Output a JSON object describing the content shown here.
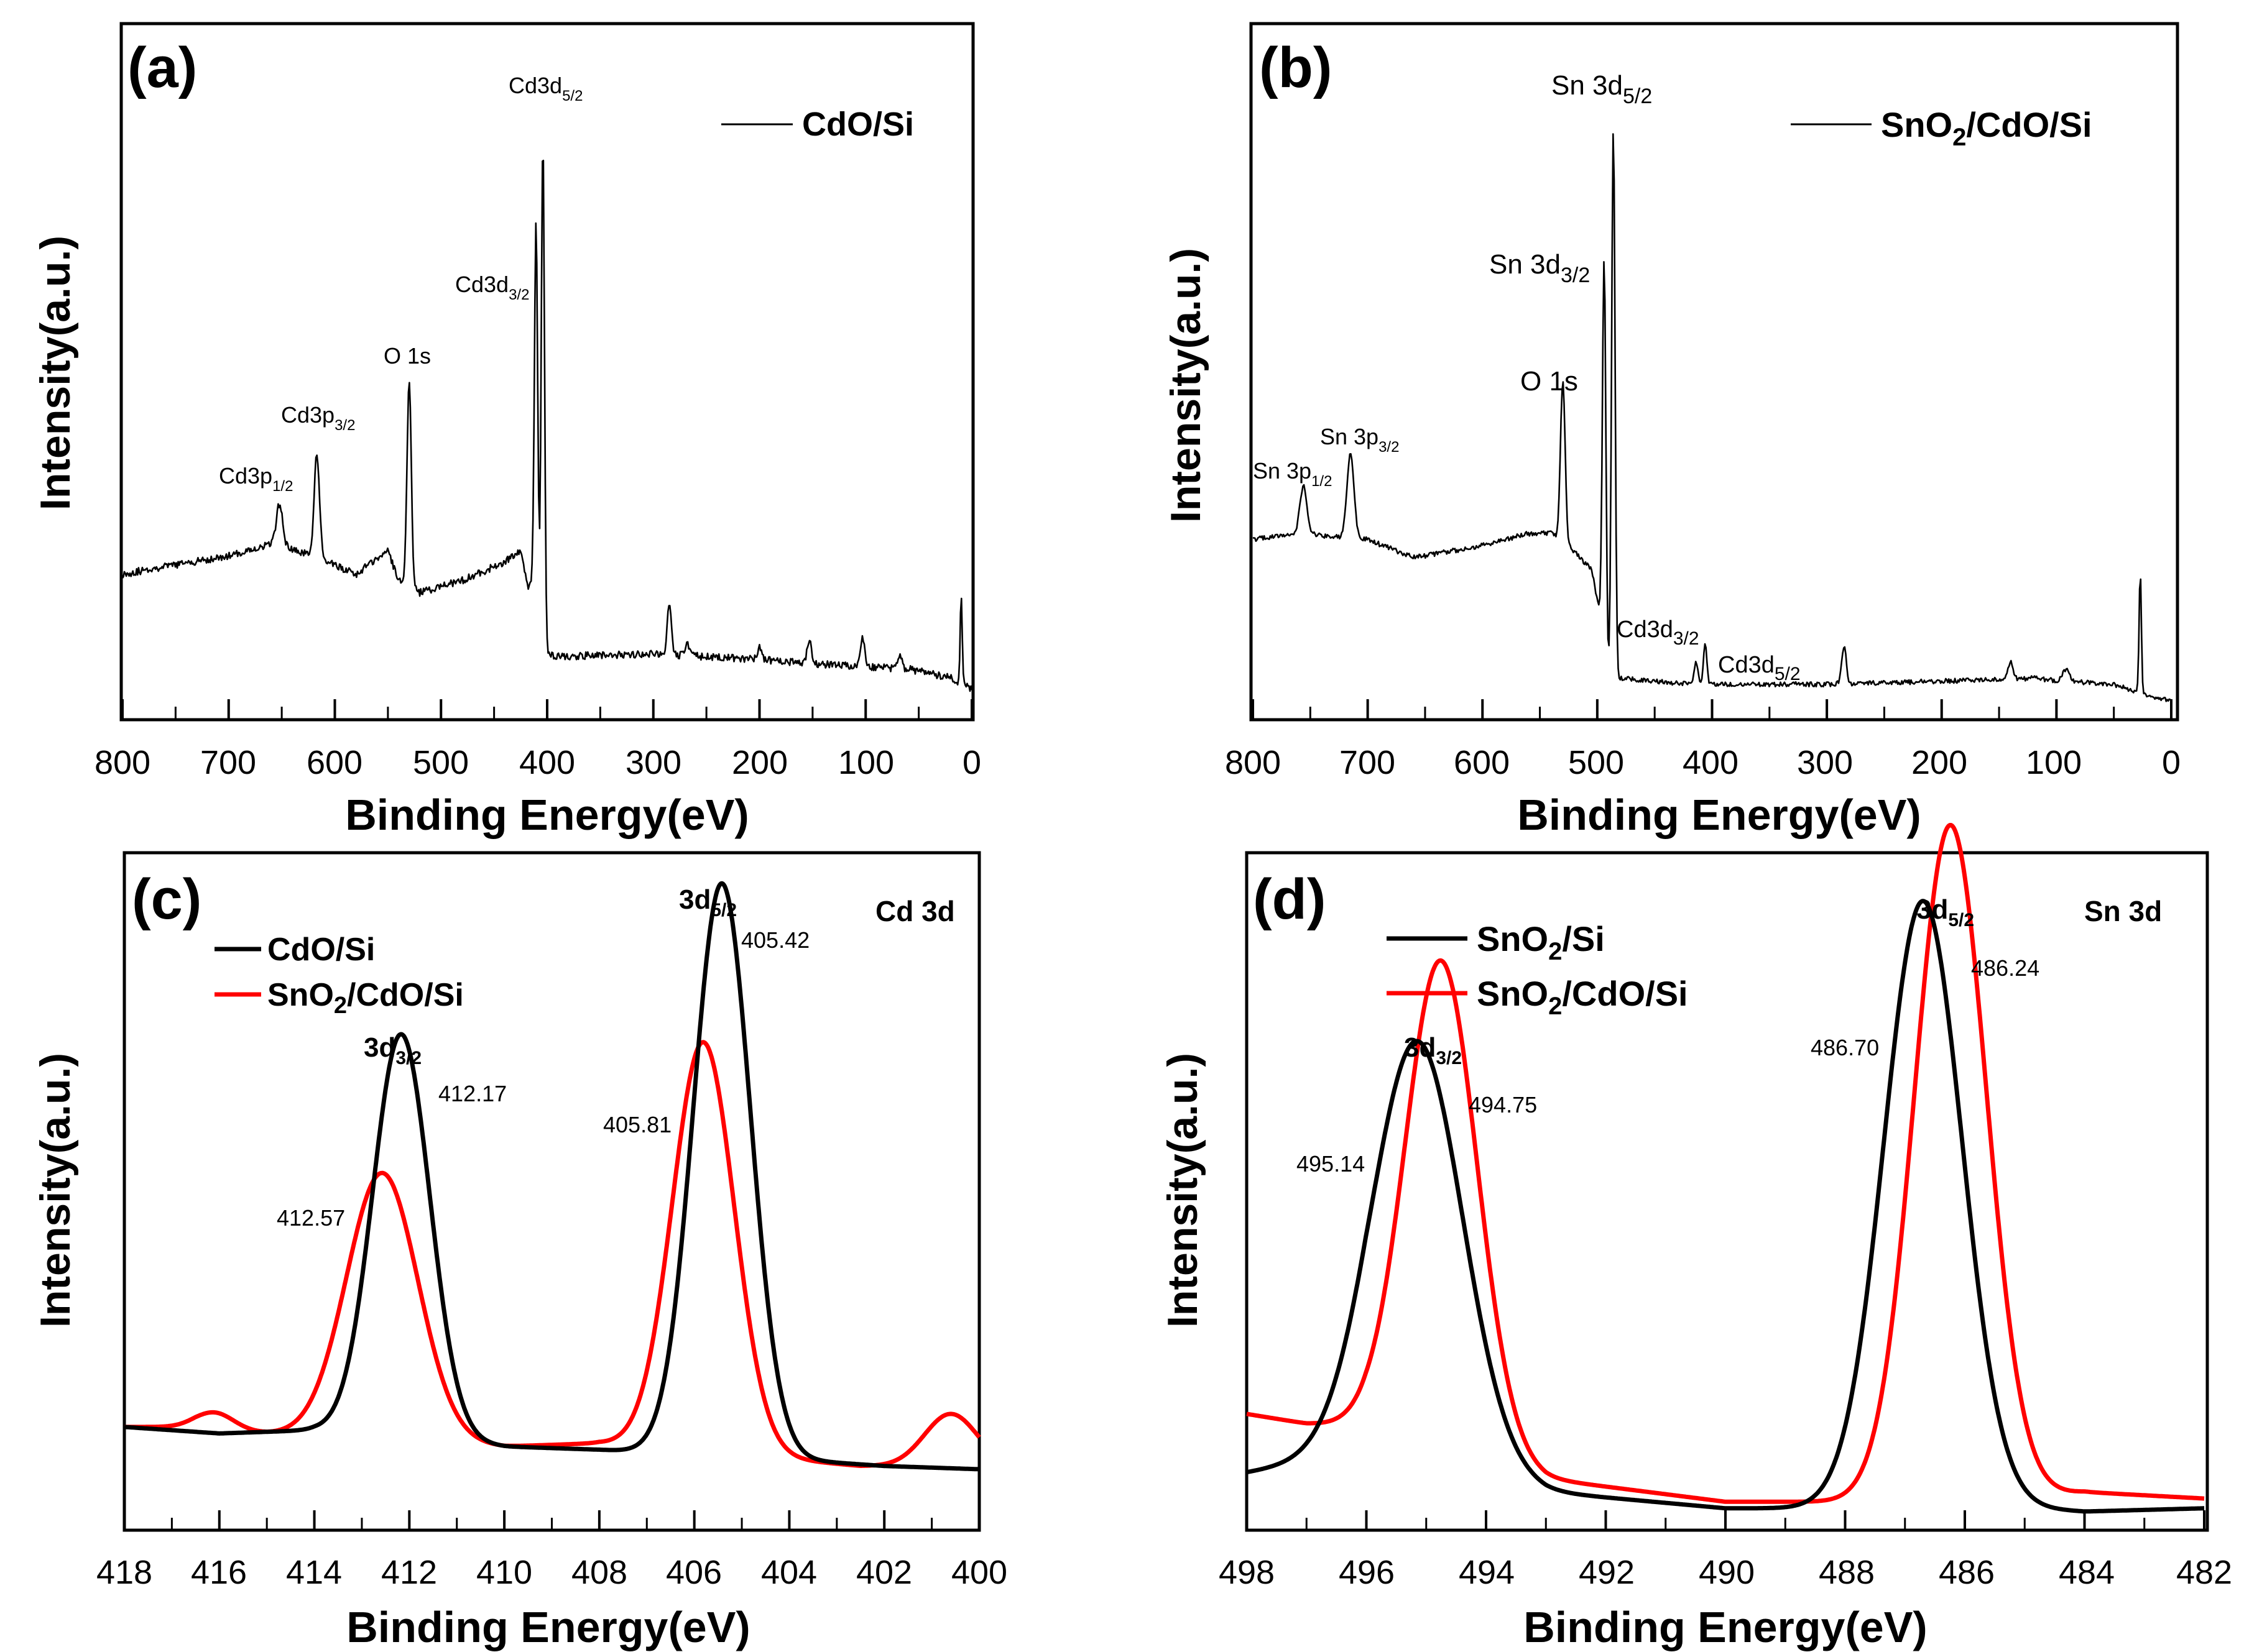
{
  "chart_data": [
    {
      "panel": "(a)",
      "type": "line",
      "xlabel": "Binding Energy(eV)",
      "ylabel": "Intensity(a.u.)",
      "xlim": [
        800,
        0
      ],
      "ylim": [
        0,
        100
      ],
      "xticks": [
        "800",
        "700",
        "600",
        "500",
        "400",
        "300",
        "200",
        "100",
        "0"
      ],
      "series": [
        {
          "name": "CdO/Si",
          "color": "#000000",
          "base": [
            [
              800,
              21
            ],
            [
              770,
              22
            ],
            [
              700,
              24
            ],
            [
              660,
              26
            ],
            [
              620,
              24
            ],
            [
              580,
              21
            ],
            [
              550,
              25
            ],
            [
              540,
              20
            ],
            [
              520,
              18
            ],
            [
              480,
              20
            ],
            [
              440,
              23
            ],
            [
              425,
              25
            ],
            [
              418,
              19
            ],
            [
              410,
              21
            ],
            [
              404,
              8
            ],
            [
              400,
              8
            ],
            [
              390,
              7.5
            ],
            [
              300,
              8
            ],
            [
              200,
              7
            ],
            [
              120,
              6
            ],
            [
              60,
              5.5
            ],
            [
              20,
              4
            ],
            [
              12,
              3
            ],
            [
              5,
              3
            ],
            [
              0,
              2
            ]
          ],
          "peaks": [
            [
              652,
              7,
              3
            ],
            [
              617,
              17,
              2.5
            ],
            [
              530,
              34,
              2
            ],
            [
              410.5,
              58,
              1.5
            ],
            [
              404,
              84,
              1.5
            ],
            [
              285,
              8,
              2
            ],
            [
              268,
              2,
              2
            ],
            [
              200,
              2,
              2
            ],
            [
              153,
              4,
              2
            ],
            [
              103,
              5,
              2
            ],
            [
              68,
              2,
              2
            ],
            [
              10,
              14,
              1
            ]
          ],
          "noise": 0.6
        }
      ],
      "legend": {
        "label": "CdO/Si",
        "position": "top-right"
      },
      "annotations": [
        {
          "text": "Cd3d",
          "sub": "5/2",
          "x": 404
        },
        {
          "text": "Cd3d",
          "sub": "3/2",
          "x": 411
        },
        {
          "text": "O 1s",
          "x": 530
        },
        {
          "text": "Cd3p",
          "sub": "3/2",
          "x": 617
        },
        {
          "text": "Cd3p",
          "sub": "1/2",
          "x": 652
        }
      ]
    },
    {
      "panel": "(b)",
      "type": "line",
      "xlabel": "Binding Energy(eV)",
      "ylabel": "Intensity(a.u.)",
      "xlim": [
        800,
        0
      ],
      "ylim": [
        0,
        100
      ],
      "xticks": [
        "800",
        "700",
        "600",
        "500",
        "400",
        "300",
        "200",
        "100",
        "0"
      ],
      "series": [
        {
          "name": "SnO2/CdO/Si",
          "color": "#000000",
          "base": [
            [
              800,
              27
            ],
            [
              760,
              28
            ],
            [
              700,
              27
            ],
            [
              660,
              24
            ],
            [
              600,
              26
            ],
            [
              560,
              28
            ],
            [
              540,
              28
            ],
            [
              520,
              25
            ],
            [
              505,
              22
            ],
            [
              497,
              14
            ],
            [
              492,
              5
            ],
            [
              488,
              4
            ],
            [
              480,
              4
            ],
            [
              420,
              3
            ],
            [
              300,
              3
            ],
            [
              200,
              3.5
            ],
            [
              120,
              4
            ],
            [
              95,
              3.5
            ],
            [
              50,
              3
            ],
            [
              35,
              2
            ],
            [
              20,
              1
            ],
            [
              10,
              0.5
            ],
            [
              0,
              0.5
            ]
          ],
          "peaks": [
            [
              756,
              8,
              3
            ],
            [
              715,
              14,
              3
            ],
            [
              530,
              27,
              2
            ],
            [
              494,
              65,
              1.5
            ],
            [
              486,
              91,
              1.5
            ],
            [
              414,
              4,
              1.5
            ],
            [
              406,
              7,
              1.5
            ],
            [
              285,
              6,
              2
            ],
            [
              140,
              3,
              2
            ],
            [
              92,
              2,
              3
            ],
            [
              27,
              20,
              1
            ]
          ],
          "noise": 0.4
        }
      ],
      "legend": {
        "label": "SnO2/CdO/Si",
        "position": "top-right"
      },
      "annotations": [
        {
          "text": "Sn 3d",
          "sub": "5/2",
          "x": 486
        },
        {
          "text": "Sn 3d",
          "sub": "3/2",
          "x": 494
        },
        {
          "text": "O 1s",
          "x": 530
        },
        {
          "text": "Sn 3p",
          "sub": "3/2",
          "x": 715
        },
        {
          "text": "Sn 3p",
          "sub": "1/2",
          "x": 756
        },
        {
          "text": "Cd3d",
          "sub": "3/2",
          "x": 414
        },
        {
          "text": "Cd3d",
          "sub": "5/2",
          "x": 406
        }
      ]
    },
    {
      "panel": "(c)",
      "type": "line",
      "title": "Cd 3d",
      "xlabel": "Binding Energy(eV)",
      "ylabel": "Intensity(a.u.)",
      "xlim": [
        418,
        400
      ],
      "ylim": [
        0,
        100
      ],
      "xticks": [
        "418",
        "416",
        "414",
        "412",
        "410",
        "408",
        "406",
        "404",
        "402",
        "400"
      ],
      "series": [
        {
          "name": "CdO/Si",
          "color": "#000000",
          "base": [
            [
              418,
              13
            ],
            [
              416,
              12
            ],
            [
              414,
              12.5
            ],
            [
              410,
              10
            ],
            [
              408,
              9.5
            ],
            [
              404,
              8
            ],
            [
              402,
              7
            ],
            [
              400,
              6.5
            ]
          ],
          "peaks": [
            [
              412.17,
              62,
              0.6
            ],
            [
              405.42,
              88,
              0.6
            ]
          ]
        },
        {
          "name": "SnO2/CdO/Si",
          "color": "#ff0000",
          "base": [
            [
              418,
              13
            ],
            [
              416.5,
              13
            ],
            [
              415,
              12
            ],
            [
              410,
              10
            ],
            [
              408,
              10.5
            ],
            [
              404,
              8
            ],
            [
              402.5,
              7
            ],
            [
              401,
              7
            ],
            [
              400,
              7
            ]
          ],
          "peaks": [
            [
              416.1,
              2.5,
              0.4
            ],
            [
              412.57,
              41,
              0.75
            ],
            [
              405.81,
              63,
              0.65
            ],
            [
              400.6,
              8,
              0.55
            ]
          ]
        }
      ],
      "legend": {
        "entries": [
          "CdO/Si",
          "SnO2/CdO/Si"
        ],
        "position": "top-left"
      },
      "annotations": [
        {
          "text": "3d",
          "sub": "5/2",
          "x": 405.4,
          "bold": true
        },
        {
          "text": "3d",
          "sub": "3/2",
          "x": 412.2,
          "bold": true
        },
        {
          "text": "405.42",
          "x": 405.42
        },
        {
          "text": "405.81",
          "x": 405.81
        },
        {
          "text": "412.17",
          "x": 412.17
        },
        {
          "text": "412.57",
          "x": 412.57
        }
      ]
    },
    {
      "panel": "(d)",
      "type": "line",
      "title": "Sn 3d",
      "xlabel": "Binding Energy(eV)",
      "ylabel": "Intensity(a.u.)",
      "xlim": [
        498,
        482
      ],
      "ylim": [
        0,
        100
      ],
      "xticks": [
        "498",
        "496",
        "494",
        "492",
        "490",
        "488",
        "486",
        "484",
        "482"
      ],
      "series": [
        {
          "name": "SnO2/Si",
          "color": "#000000",
          "base": [
            [
              498,
              6
            ],
            [
              496,
              9
            ],
            [
              493,
              3
            ],
            [
              490,
              0.5
            ],
            [
              488,
              0.5
            ],
            [
              486,
              1
            ],
            [
              484,
              0
            ],
            [
              482,
              0.5
            ]
          ],
          "peaks": [
            [
              495.14,
              65,
              0.75
            ],
            [
              486.7,
              93,
              0.65
            ]
          ]
        },
        {
          "name": "SnO2/CdO/Si",
          "color": "#ff0000",
          "base": [
            [
              498,
              15
            ],
            [
              497,
              13.5
            ],
            [
              496,
              13
            ],
            [
              493,
              5
            ],
            [
              490,
              1.5
            ],
            [
              488,
              1.5
            ],
            [
              486,
              1.5
            ],
            [
              484,
              3
            ],
            [
              482,
              2
            ]
          ],
          "peaks": [
            [
              494.75,
              75,
              0.6
            ],
            [
              486.24,
              104,
              0.6
            ]
          ]
        }
      ],
      "legend": {
        "entries": [
          "SnO2/Si",
          "SnO2/CdO/Si"
        ],
        "position": "top-left"
      },
      "annotations": [
        {
          "text": "3d",
          "sub": "5/2",
          "x": 486.3,
          "bold": true
        },
        {
          "text": "3d",
          "sub": "3/2",
          "x": 495.0,
          "bold": true
        },
        {
          "text": "486.24",
          "x": 486.24
        },
        {
          "text": "486.70",
          "x": 486.7
        },
        {
          "text": "494.75",
          "x": 494.75
        },
        {
          "text": "495.14",
          "x": 495.14
        }
      ]
    }
  ]
}
